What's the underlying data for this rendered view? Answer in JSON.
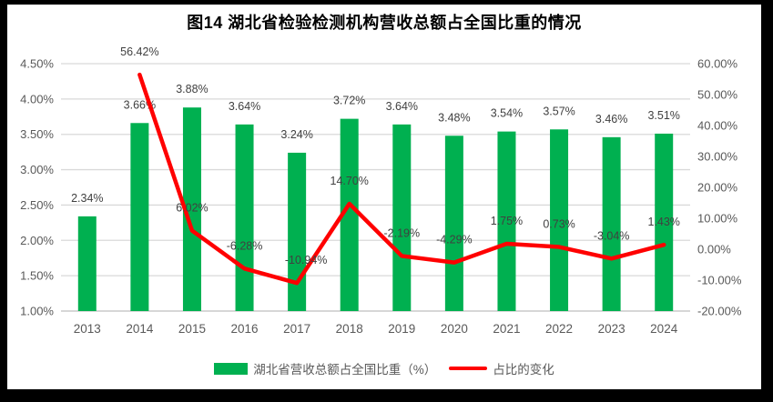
{
  "title": "图14 湖北省检验检测机构营收总额占全国比重的情况",
  "colors": {
    "bar": "#00B050",
    "line": "#FF0000",
    "gridline": "#D9D9D9",
    "axis_line": "#BFBFBF",
    "axis_text": "#595959",
    "data_label_text": "#404040",
    "title_text": "#000000",
    "frame": "#000000",
    "background": "#FFFFFF"
  },
  "chart_data": {
    "type": "bar",
    "subtype": "bar-with-line-combo",
    "title": "图14 湖北省检验检测机构营收总额占全国比重的情况",
    "categories": [
      "2013",
      "2014",
      "2015",
      "2016",
      "2017",
      "2018",
      "2019",
      "2020",
      "2021",
      "2022",
      "2023",
      "2024"
    ],
    "series": [
      {
        "name": "湖北省营收总额占全国比重（%）",
        "type": "bar",
        "axis": "left",
        "color": "#00B050",
        "values": [
          2.34,
          3.66,
          3.88,
          3.64,
          3.24,
          3.72,
          3.64,
          3.48,
          3.54,
          3.57,
          3.46,
          3.51
        ],
        "labels": [
          "2.34%",
          "3.66%",
          "3.88%",
          "3.64%",
          "3.24%",
          "3.72%",
          "3.64%",
          "3.48%",
          "3.54%",
          "3.57%",
          "3.46%",
          "3.51%"
        ]
      },
      {
        "name": "占比的变化",
        "type": "line",
        "axis": "right",
        "color": "#FF0000",
        "values": [
          null,
          56.42,
          6.02,
          -6.28,
          -10.94,
          14.7,
          -2.19,
          -4.29,
          1.75,
          0.73,
          -3.04,
          1.43
        ],
        "labels": [
          null,
          "56.42%",
          "6.02%",
          "-6.28%",
          "-10.94%",
          "14.70%",
          "-2.19%",
          "-4.29%",
          "1.75%",
          "0.73%",
          "-3.04%",
          "1.43%"
        ]
      }
    ],
    "left_axis": {
      "min": 1.0,
      "max": 4.5,
      "step": 0.5,
      "ticks": [
        "4.50%",
        "4.00%",
        "3.50%",
        "3.00%",
        "2.50%",
        "2.00%",
        "1.50%",
        "1.00%"
      ]
    },
    "right_axis": {
      "min": -20,
      "max": 60,
      "step": 10,
      "ticks": [
        "60.00%",
        "50.00%",
        "40.00%",
        "30.00%",
        "20.00%",
        "10.00%",
        "0.00%",
        "-10.00%",
        "-20.00%"
      ]
    },
    "grid": true,
    "legend_position": "bottom",
    "xlabel": "",
    "ylabel": ""
  },
  "legend": {
    "bar_label": "湖北省营收总额占全国比重（%）",
    "line_label": "占比的变化"
  }
}
